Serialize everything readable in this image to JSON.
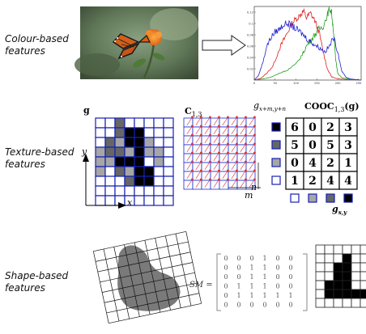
{
  "rows": {
    "colour_label": "Colour-based\nfeatures",
    "texture_label": "Texture-based\nfeatures",
    "shape_label": "Shape-based\nfeatures"
  },
  "colour": {
    "photo_icon": "butterfly-photo",
    "arrow_icon": "hollow-right-arrow",
    "histogram": {
      "type": "line",
      "yticks": [
        "0.12",
        "0.1",
        "0.08",
        "0.06",
        "0.04",
        "0.02"
      ],
      "xticks": [
        "0",
        "50",
        "100",
        "150",
        "200",
        "250"
      ],
      "xlim": [
        0,
        256
      ],
      "ylim": [
        0,
        0.13
      ],
      "series": [
        {
          "color": "#e02020",
          "x": [
            0,
            15,
            30,
            45,
            60,
            70,
            80,
            90,
            100,
            110,
            118,
            125,
            135,
            145,
            155,
            165,
            175,
            185,
            195,
            205,
            220,
            240,
            256
          ],
          "y": [
            0,
            0.003,
            0.012,
            0.025,
            0.055,
            0.07,
            0.085,
            0.1,
            0.108,
            0.115,
            0.122,
            0.11,
            0.118,
            0.105,
            0.085,
            0.05,
            0.02,
            0.006,
            0.003,
            0.002,
            0.001,
            0.001,
            0
          ]
        },
        {
          "color": "#20a020",
          "x": [
            0,
            20,
            40,
            60,
            80,
            100,
            115,
            125,
            135,
            145,
            155,
            165,
            175,
            180,
            185,
            190,
            195,
            200,
            210,
            225,
            240,
            256
          ],
          "y": [
            0,
            0.002,
            0.005,
            0.012,
            0.018,
            0.028,
            0.045,
            0.06,
            0.07,
            0.08,
            0.09,
            0.095,
            0.115,
            0.126,
            0.12,
            0.085,
            0.035,
            0.012,
            0.004,
            0.002,
            0.001,
            0
          ]
        },
        {
          "color": "#2020d0",
          "x": [
            0,
            10,
            20,
            30,
            40,
            50,
            60,
            70,
            80,
            90,
            100,
            110,
            120,
            130,
            140,
            150,
            160,
            170,
            180,
            190,
            200,
            210,
            220,
            230,
            240,
            256
          ],
          "y": [
            0,
            0.008,
            0.03,
            0.06,
            0.075,
            0.085,
            0.09,
            0.098,
            0.1,
            0.096,
            0.09,
            0.085,
            0.078,
            0.07,
            0.065,
            0.06,
            0.055,
            0.05,
            0.06,
            0.075,
            0.05,
            0.015,
            0.005,
            0.002,
            0.001,
            0
          ]
        }
      ]
    }
  },
  "texture": {
    "g_label": "g",
    "y_axis_label": "y",
    "x_axis_label": "x",
    "grid_levels": [
      [
        0,
        0,
        2,
        0,
        0,
        0,
        0,
        0
      ],
      [
        0,
        0,
        2,
        3,
        3,
        0,
        0,
        0
      ],
      [
        0,
        2,
        1,
        3,
        3,
        1,
        0,
        0
      ],
      [
        1,
        2,
        2,
        1,
        3,
        1,
        1,
        0
      ],
      [
        1,
        1,
        3,
        3,
        3,
        0,
        1,
        0
      ],
      [
        1,
        0,
        2,
        1,
        3,
        3,
        0,
        0
      ],
      [
        0,
        0,
        0,
        2,
        3,
        3,
        0,
        0
      ],
      [
        0,
        0,
        0,
        0,
        0,
        0,
        0,
        0
      ],
      [
        0,
        0,
        0,
        0,
        0,
        0,
        0,
        0
      ]
    ],
    "level_colors": [
      "#ffffff",
      "#a6a6a6",
      "#666666",
      "#000000"
    ],
    "c_label": "C",
    "c_sub": "1,3",
    "n_label": "n",
    "m_label": "m",
    "gxy_label": "g",
    "gxy_sub": "x+m,y+n",
    "cooc_label": "COOC",
    "cooc_sub": "1,3",
    "cooc_arg": "(g)",
    "matrix": [
      [
        "6",
        "0",
        "2",
        "3"
      ],
      [
        "5",
        "0",
        "5",
        "3"
      ],
      [
        "0",
        "4",
        "2",
        "1"
      ],
      [
        "1",
        "2",
        "4",
        "4"
      ]
    ],
    "gs_label": "g",
    "gs_sub": "s,y"
  },
  "shape": {
    "sm_label": "SM =",
    "sm_matrix": [
      [
        "0",
        "0",
        "0",
        "1",
        "0",
        "0"
      ],
      [
        "0",
        "0",
        "1",
        "1",
        "0",
        "0"
      ],
      [
        "0",
        "0",
        "1",
        "1",
        "0",
        "0"
      ],
      [
        "0",
        "1",
        "1",
        "1",
        "0",
        "0"
      ],
      [
        "0",
        "1",
        "1",
        "1",
        "1",
        "1"
      ],
      [
        "0",
        "0",
        "0",
        "0",
        "0",
        "0"
      ]
    ],
    "bin_grid": [
      [
        0,
        0,
        0,
        0,
        0,
        0
      ],
      [
        0,
        0,
        0,
        1,
        0,
        0
      ],
      [
        0,
        0,
        1,
        1,
        0,
        0
      ],
      [
        0,
        0,
        1,
        1,
        0,
        0
      ],
      [
        0,
        1,
        1,
        1,
        0,
        0
      ],
      [
        0,
        1,
        1,
        1,
        1,
        1
      ],
      [
        0,
        0,
        0,
        0,
        0,
        0
      ]
    ]
  }
}
